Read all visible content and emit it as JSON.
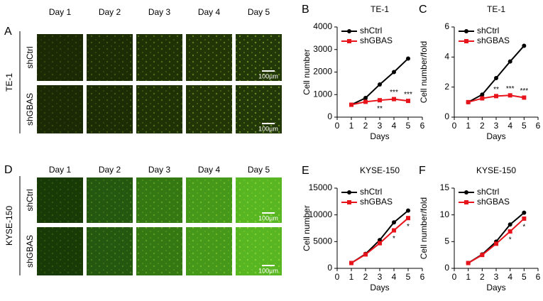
{
  "image_panels": [
    {
      "panel": "A",
      "cell_line": "TE-1",
      "days": [
        "Day 1",
        "Day 2",
        "Day 3",
        "Day 4",
        "Day 5"
      ],
      "rows": [
        "shCtrl",
        "shGBAS"
      ],
      "scale_bar": "100µm"
    },
    {
      "panel": "D",
      "cell_line": "KYSE-150",
      "days": [
        "Day 1",
        "Day 2",
        "Day 3",
        "Day 4",
        "Day 5"
      ],
      "rows": [
        "shCtrl",
        "shGBAS"
      ],
      "scale_bar": "100µm"
    }
  ],
  "chart_data": [
    {
      "type": "line",
      "panel": "B",
      "title": "TE-1",
      "x_label": "Days",
      "y_label": "Cell number",
      "x": [
        1,
        2,
        3,
        4,
        5
      ],
      "xlim": [
        0,
        6
      ],
      "xticks": [
        0,
        1,
        2,
        3,
        4,
        5,
        6
      ],
      "ylim": [
        0,
        4000
      ],
      "yticks": [
        0,
        1000,
        2000,
        3000,
        4000
      ],
      "series": [
        {
          "name": "shCtrl",
          "color": "#000000",
          "marker": "circle",
          "values": [
            550,
            850,
            1450,
            2000,
            2600
          ]
        },
        {
          "name": "shGBAS",
          "color": "#e8141c",
          "marker": "square",
          "values": [
            550,
            680,
            750,
            800,
            720
          ]
        }
      ],
      "significance": [
        null,
        null,
        "**",
        "***",
        "***"
      ],
      "legend": "upper left"
    },
    {
      "type": "line",
      "panel": "C",
      "title": "TE-1",
      "x_label": "Days",
      "y_label": "Cell number/fold",
      "x": [
        1,
        2,
        3,
        4,
        5
      ],
      "xlim": [
        0,
        6
      ],
      "xticks": [
        0,
        1,
        2,
        3,
        4,
        5,
        6
      ],
      "ylim": [
        0,
        6
      ],
      "yticks": [
        0,
        2,
        4,
        6
      ],
      "series": [
        {
          "name": "shCtrl",
          "color": "#000000",
          "marker": "circle",
          "values": [
            1,
            1.5,
            2.6,
            3.7,
            4.75
          ]
        },
        {
          "name": "shGBAS",
          "color": "#e8141c",
          "marker": "square",
          "values": [
            1,
            1.25,
            1.4,
            1.45,
            1.3
          ]
        }
      ],
      "significance": [
        null,
        null,
        "**",
        "***",
        "***"
      ],
      "legend": "upper left"
    },
    {
      "type": "line",
      "panel": "E",
      "title": "KYSE-150",
      "x_label": "Days",
      "y_label": "Cell number",
      "x": [
        1,
        2,
        3,
        4,
        5
      ],
      "xlim": [
        0,
        6
      ],
      "xticks": [
        0,
        1,
        2,
        3,
        4,
        5,
        6
      ],
      "ylim": [
        0,
        15000
      ],
      "yticks": [
        0,
        5000,
        10000,
        15000
      ],
      "series": [
        {
          "name": "shCtrl",
          "color": "#000000",
          "marker": "circle",
          "values": [
            1000,
            2700,
            5300,
            8600,
            10800
          ]
        },
        {
          "name": "shGBAS",
          "color": "#e8141c",
          "marker": "square",
          "values": [
            1000,
            2600,
            4700,
            7100,
            9400
          ]
        }
      ],
      "significance": [
        null,
        null,
        null,
        "*",
        "*"
      ],
      "legend": "upper left"
    },
    {
      "type": "line",
      "panel": "F",
      "title": "KYSE-150",
      "x_label": "Days",
      "y_label": "Cell number/fold",
      "x": [
        1,
        2,
        3,
        4,
        5
      ],
      "xlim": [
        0,
        6
      ],
      "xticks": [
        0,
        1,
        2,
        3,
        4,
        5,
        6
      ],
      "ylim": [
        0,
        15
      ],
      "yticks": [
        0,
        5,
        10,
        15
      ],
      "series": [
        {
          "name": "shCtrl",
          "color": "#000000",
          "marker": "circle",
          "values": [
            1,
            2.6,
            5,
            8.2,
            10.4
          ]
        },
        {
          "name": "shGBAS",
          "color": "#e8141c",
          "marker": "square",
          "values": [
            1,
            2.5,
            4.6,
            6.9,
            9.3
          ]
        }
      ],
      "significance": [
        null,
        null,
        null,
        "*",
        "*"
      ],
      "legend": "upper left"
    }
  ]
}
